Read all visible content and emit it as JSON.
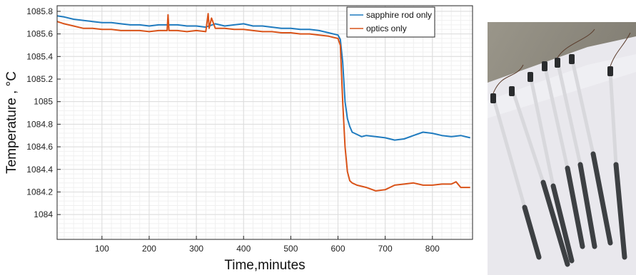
{
  "chart_data": {
    "type": "line",
    "xlabel": "Time,minutes",
    "ylabel": "Temperature ,  °C",
    "xlim": [
      5,
      885
    ],
    "ylim": [
      1083.78,
      1085.85
    ],
    "x_ticks": [
      100,
      200,
      300,
      400,
      500,
      600,
      700,
      800
    ],
    "y_ticks": [
      1084,
      1084.2,
      1084.4,
      1084.6,
      1084.8,
      1085,
      1085.2,
      1085.4,
      1085.6,
      1085.8
    ],
    "grid": true,
    "legend_position": "top-right",
    "series": [
      {
        "name": "sapphire rod only",
        "color": "#1f7bbf",
        "x": [
          5,
          20,
          40,
          60,
          80,
          100,
          120,
          140,
          160,
          180,
          200,
          220,
          240,
          260,
          280,
          300,
          320,
          340,
          360,
          380,
          400,
          420,
          440,
          460,
          480,
          500,
          520,
          540,
          560,
          580,
          600,
          605,
          610,
          615,
          620,
          625,
          630,
          640,
          650,
          660,
          680,
          700,
          720,
          740,
          760,
          780,
          800,
          820,
          840,
          860,
          880
        ],
        "y": [
          1085.76,
          1085.75,
          1085.73,
          1085.72,
          1085.71,
          1085.7,
          1085.7,
          1085.69,
          1085.68,
          1085.68,
          1085.67,
          1085.68,
          1085.68,
          1085.68,
          1085.67,
          1085.67,
          1085.66,
          1085.69,
          1085.67,
          1085.68,
          1085.69,
          1085.67,
          1085.67,
          1085.66,
          1085.65,
          1085.65,
          1085.64,
          1085.64,
          1085.63,
          1085.61,
          1085.59,
          1085.55,
          1085.35,
          1085.0,
          1084.85,
          1084.78,
          1084.73,
          1084.71,
          1084.69,
          1084.7,
          1084.69,
          1084.68,
          1084.66,
          1084.67,
          1084.7,
          1084.73,
          1084.72,
          1084.7,
          1084.69,
          1084.7,
          1084.68
        ]
      },
      {
        "name": "optics only",
        "color": "#d95319",
        "x": [
          5,
          20,
          40,
          60,
          80,
          100,
          120,
          140,
          160,
          180,
          200,
          220,
          238,
          240,
          242,
          260,
          280,
          300,
          320,
          325,
          327,
          332,
          340,
          360,
          380,
          400,
          420,
          440,
          460,
          480,
          500,
          520,
          540,
          560,
          580,
          600,
          605,
          610,
          615,
          620,
          625,
          630,
          640,
          660,
          680,
          700,
          720,
          740,
          760,
          780,
          800,
          820,
          840,
          850,
          860,
          880
        ],
        "y": [
          1085.71,
          1085.69,
          1085.67,
          1085.65,
          1085.65,
          1085.64,
          1085.64,
          1085.63,
          1085.63,
          1085.63,
          1085.62,
          1085.63,
          1085.63,
          1085.77,
          1085.63,
          1085.63,
          1085.62,
          1085.63,
          1085.62,
          1085.78,
          1085.65,
          1085.74,
          1085.65,
          1085.65,
          1085.64,
          1085.64,
          1085.63,
          1085.62,
          1085.62,
          1085.61,
          1085.61,
          1085.6,
          1085.6,
          1085.59,
          1085.58,
          1085.56,
          1085.5,
          1085.0,
          1084.6,
          1084.38,
          1084.3,
          1084.28,
          1084.26,
          1084.24,
          1084.21,
          1084.22,
          1084.26,
          1084.27,
          1084.28,
          1084.26,
          1084.26,
          1084.27,
          1084.27,
          1084.29,
          1084.24,
          1084.24
        ]
      }
    ]
  },
  "photo": {
    "description_icon": "thermocouple-probes-photo"
  }
}
